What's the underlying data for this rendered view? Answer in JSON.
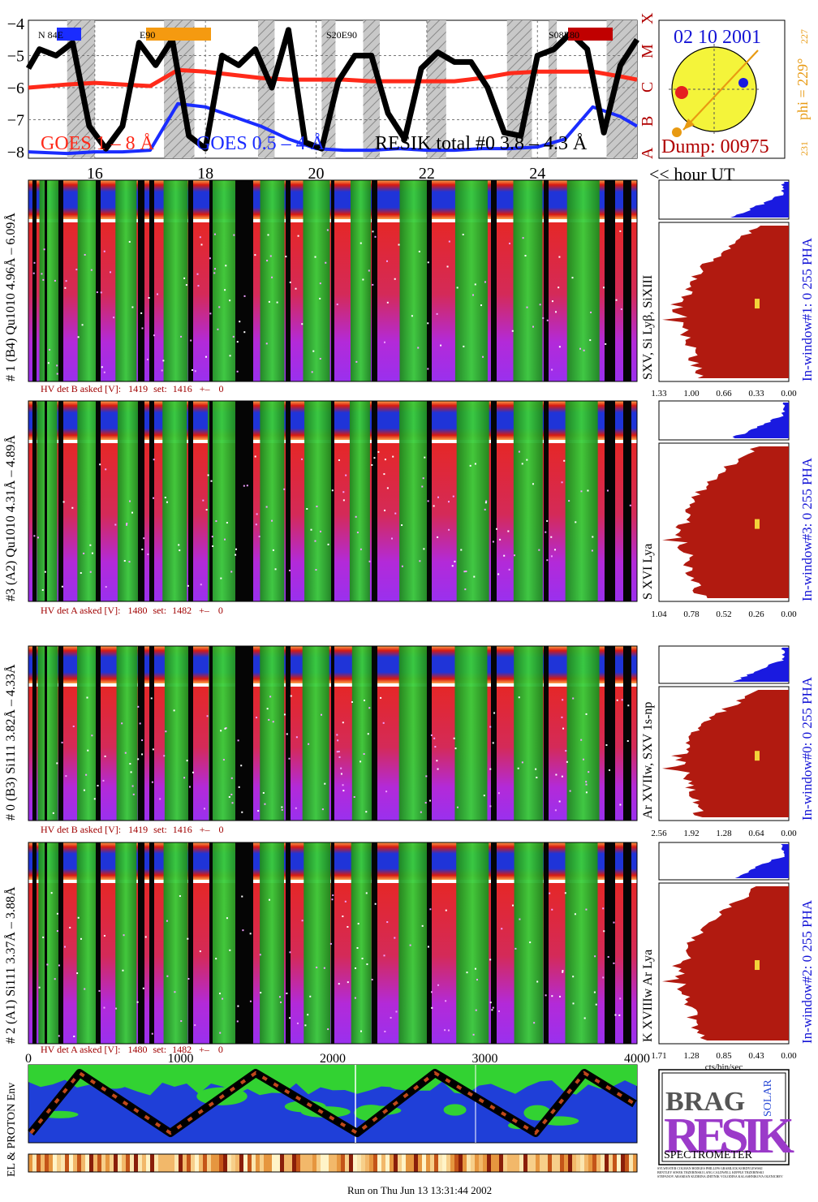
{
  "colors": {
    "goes_long": "#ff2a1a",
    "goes_short": "#1a2cff",
    "resik_total": "#000000",
    "accent_blue": "#1515d6",
    "accent_red": "#b00000",
    "accent_orange": "#e89a12",
    "sun_fill": "#f4f43a",
    "hist_fill": "#b11a10",
    "pha_fill": "#1a1ae0",
    "spec_red": "#e0262a",
    "spec_green": "#2fc22f",
    "spec_magenta": "#b030e0",
    "spec_blue": "#1f3fd8",
    "spec_yellow": "#f3d23a"
  },
  "goes": {
    "legend_long": "GOES 1 – 8 Å",
    "legend_short": "GOES 0.5 – 4 Å",
    "legend_resik": "RESIK total #0  3.8 – 4.3 Å",
    "sat_labels": [
      "N 84E",
      "E90",
      "S20E90",
      "S08E80"
    ],
    "class_letters": [
      "X",
      "M",
      "C",
      "B",
      "A"
    ]
  },
  "chart_data": [
    {
      "type": "line",
      "title": "",
      "ylabel": "",
      "xlabel": "<< hour UT",
      "x_ticks": [
        "16",
        "18",
        "20",
        "22",
        "24"
      ],
      "y_ticks": [
        "−4",
        "−5",
        "−6",
        "−7",
        "−8"
      ],
      "ylim": [
        -8.2,
        -3.9
      ],
      "xlim": [
        14.8,
        25.8
      ],
      "log_scale": true,
      "grid": true,
      "series": [
        {
          "name": "GOES 1 – 8 Å",
          "x": [
            14.8,
            15.5,
            16.0,
            16.5,
            17.0,
            17.5,
            18.0,
            18.5,
            19.0,
            19.5,
            20.0,
            20.5,
            21.0,
            21.5,
            22.0,
            22.5,
            23.0,
            23.5,
            24.0,
            24.5,
            25.0,
            25.5,
            25.8
          ],
          "values": [
            -6.0,
            -5.9,
            -5.85,
            -5.9,
            -5.95,
            -5.45,
            -5.5,
            -5.6,
            -5.7,
            -5.75,
            -5.75,
            -5.75,
            -5.8,
            -5.8,
            -5.8,
            -5.8,
            -5.7,
            -5.55,
            -5.5,
            -5.5,
            -5.5,
            -5.65,
            -5.75
          ]
        },
        {
          "name": "GOES 0.5 – 4 Å",
          "x": [
            14.8,
            15.5,
            16.0,
            16.5,
            17.0,
            17.5,
            18.0,
            18.5,
            19.0,
            19.5,
            20.0,
            20.5,
            21.0,
            21.5,
            22.0,
            22.5,
            23.0,
            23.5,
            24.0,
            24.5,
            25.0,
            25.5,
            25.8
          ],
          "values": [
            -8.0,
            -8.05,
            -8.0,
            -8.0,
            -7.95,
            -6.5,
            -6.6,
            -6.9,
            -7.2,
            -7.6,
            -7.9,
            -7.95,
            -7.95,
            -7.9,
            -7.95,
            -7.95,
            -7.9,
            -7.9,
            -7.85,
            -7.6,
            -6.6,
            -6.9,
            -7.2
          ]
        },
        {
          "name": "RESIK total #0  3.8 – 4.3 Å",
          "x": [
            14.8,
            15.0,
            15.3,
            15.6,
            15.9,
            16.2,
            16.5,
            16.8,
            17.1,
            17.4,
            17.7,
            18.0,
            18.3,
            18.6,
            18.9,
            19.2,
            19.5,
            19.8,
            20.1,
            20.4,
            20.7,
            21.0,
            21.3,
            21.6,
            21.9,
            22.2,
            22.5,
            22.8,
            23.1,
            23.4,
            23.7,
            24.0,
            24.3,
            24.6,
            24.9,
            25.2,
            25.5,
            25.8
          ],
          "values": [
            -5.4,
            -4.8,
            -5.0,
            -4.6,
            -7.2,
            -7.9,
            -7.2,
            -4.6,
            -5.3,
            -4.5,
            -7.5,
            -7.9,
            -5.0,
            -5.3,
            -4.8,
            -6.0,
            -4.2,
            -7.7,
            -7.9,
            -5.8,
            -5.0,
            -5.0,
            -6.8,
            -7.6,
            -5.4,
            -4.9,
            -5.2,
            -5.2,
            -6.0,
            -7.4,
            -7.5,
            -5.0,
            -4.8,
            -4.3,
            -4.8,
            -7.4,
            -5.3,
            -4.5
          ]
        }
      ]
    },
    {
      "type": "bar",
      "title": "In-window#1: 0 255 PHA",
      "xlabel": "",
      "x_ticks": [
        "1.33",
        "1.00",
        "0.66",
        "0.33",
        "0.00"
      ],
      "label": "SXV, Si Lyβ, SiXIII"
    },
    {
      "type": "bar",
      "title": "In-window#3: 0 255 PHA",
      "xlabel": "",
      "x_ticks": [
        "1.04",
        "0.78",
        "0.52",
        "0.26",
        "0.00"
      ],
      "label": "S XVI Lya"
    },
    {
      "type": "bar",
      "title": "In-window#0: 0 255 PHA",
      "xlabel": "",
      "x_ticks": [
        "2.56",
        "1.92",
        "1.28",
        "0.64",
        "0.00"
      ],
      "label": "Ar XVIIw, SXV 1s-np"
    },
    {
      "type": "bar",
      "title": "In-window#2: 0 255 PHA",
      "xlabel": "cts/bin/sec",
      "x_ticks": [
        "1.71",
        "1.28",
        "0.85",
        "0.43",
        "0.00"
      ],
      "label": "K XVIIIw  Ar Lya"
    }
  ],
  "sun_panel": {
    "date": "02 10 2001",
    "dump": "Dump: 00975",
    "phi": "phi = 229°",
    "side_top": "227",
    "side_bottom": "231"
  },
  "panels": [
    {
      "label": "# 1 (B4) Qu1010  4.96Å – 6.09Å",
      "hv": {
        "prefix": "HV det B asked [V]:",
        "asked": "1419",
        "set_label": "set:",
        "set": "1416",
        "pm": "+–",
        "delta": "0"
      }
    },
    {
      "label": "#3 (A2) Qu1010  4.31Å – 4.89Å",
      "hv": {
        "prefix": "HV det A asked [V]:",
        "asked": "1480",
        "set_label": "set:",
        "set": "1482",
        "pm": "+–",
        "delta": "0"
      }
    },
    {
      "label": "# 0 (B3) Si111  3.82Å – 4.33Å",
      "hv": {
        "prefix": "HV det B asked [V]:",
        "asked": "1419",
        "set_label": "set:",
        "set": "1416",
        "pm": "+–",
        "delta": "0"
      }
    },
    {
      "label": "# 2 (A1) Si111  3.37Å – 3.88Å",
      "hv": {
        "prefix": "HV det A asked [V]:",
        "asked": "1480",
        "set_label": "set:",
        "set": "1482",
        "pm": "+–",
        "delta": "0"
      }
    }
  ],
  "env": {
    "label": "EL & PROTON Env",
    "x_ticks": [
      "0",
      "1000",
      "2000",
      "3000",
      "4000"
    ]
  },
  "logo": {
    "letters_top": "BRAG",
    "letters_big": "RESIK",
    "solar": "SOLAR",
    "spectrometer": "SPECTROMETER",
    "credits_1": "SYLWESTER COLMAN HODGES PHILLIPS GRAMLICK KORDYLEWSKI",
    "credits_2": "BENTLEY SIWEK TRZEBINSKI LANG CALDWELL KEPPLE TRZEBINSKI",
    "credits_3": "STEPANOV ARAMIAN KUDRINA ZHITNIK VOLODINA KALASHNIKOVA OLENICHEV"
  },
  "footer": {
    "run": "Run on Thu Jun 13 13:31:44 2002"
  }
}
